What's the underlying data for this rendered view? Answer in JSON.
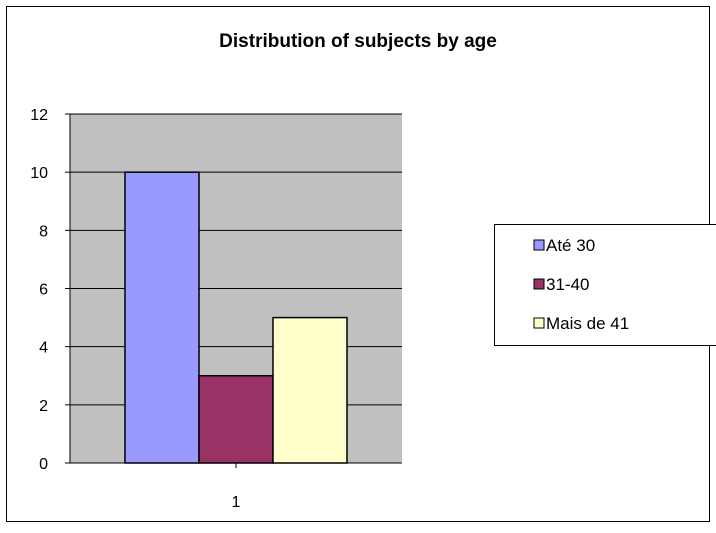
{
  "chart_data": {
    "type": "bar",
    "title": "Distribution of subjects by age",
    "xlabel": "",
    "ylabel": "",
    "categories": [
      "1"
    ],
    "series": [
      {
        "name": "Até 30",
        "values": [
          10
        ],
        "color": "#9999FF"
      },
      {
        "name": "31-40",
        "values": [
          3
        ],
        "color": "#993366"
      },
      {
        "name": "Mais de 41",
        "values": [
          5
        ],
        "color": "#FFFFCC"
      }
    ],
    "ylim": [
      0,
      12
    ],
    "yticks": [
      0,
      2,
      4,
      6,
      8,
      10,
      12
    ],
    "grid": true,
    "legend_position": "right",
    "plot_background": "#C0C0C0"
  }
}
